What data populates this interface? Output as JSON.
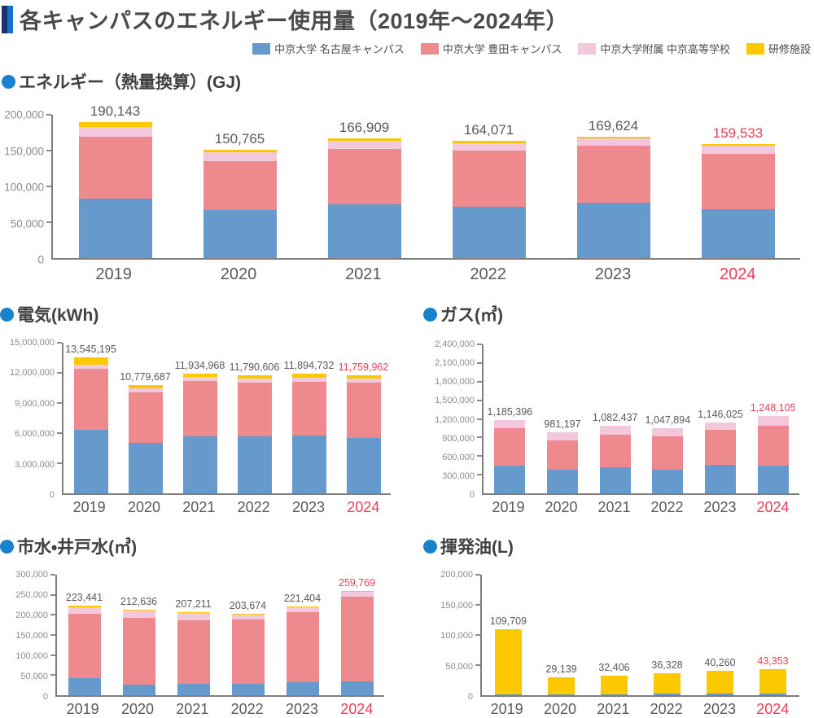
{
  "title": "各キャンパスのエネルギー使用量（2019年～2024年）",
  "colors": {
    "accent_red": "#e8415a",
    "marker_navy": "#1c2e6b",
    "marker_blue": "#1273c6",
    "heading_dot": "#1a82cc"
  },
  "legend": [
    {
      "label": "中京大学 名古屋キャンパス",
      "color": "#6699cc"
    },
    {
      "label": "中京大学 豊田キャンパス",
      "color": "#ee8a8d"
    },
    {
      "label": "中京大学附属 中京高等学校",
      "color": "#f3c7dc"
    },
    {
      "label": "研修施設",
      "color": "#fcc800"
    }
  ],
  "chart_data": [
    {
      "type": "bar",
      "stacked": true,
      "title": "エネルギー（熱量換算）(GJ)",
      "categories": [
        "2019",
        "2020",
        "2021",
        "2022",
        "2023",
        "2024"
      ],
      "axis_max": 200000,
      "ticks": [
        "200,000",
        "150,000",
        "100,000",
        "50,000",
        "0"
      ],
      "totals": [
        "190,143",
        "150,765",
        "166,909",
        "164,071",
        "169,624",
        "159,533"
      ],
      "highlight_last": true,
      "series": [
        {
          "name": "中京大学 名古屋キャンパス",
          "values": [
            82700,
            67500,
            75300,
            72000,
            77100,
            68400
          ]
        },
        {
          "name": "中京大学 豊田キャンパス",
          "values": [
            87000,
            68200,
            76700,
            78300,
            79300,
            77400
          ]
        },
        {
          "name": "中京大学附属 中京高等学校",
          "values": [
            13200,
            12600,
            12050,
            10150,
            10700,
            11100
          ]
        },
        {
          "name": "研修施設",
          "values": [
            7243,
            2465,
            2859,
            3621,
            2524,
            2633
          ]
        }
      ]
    },
    {
      "type": "bar",
      "stacked": true,
      "title": "電気(kWh)",
      "categories": [
        "2019",
        "2020",
        "2021",
        "2022",
        "2023",
        "2024"
      ],
      "axis_max": 15000000,
      "ticks": [
        "15,000,000",
        "12,000,000",
        "9,000,000",
        "6,000,000",
        "3,000,000",
        "0"
      ],
      "totals": [
        "13,545,195",
        "10,779,687",
        "11,934,968",
        "11,790,606",
        "11,894,732",
        "11,759,962"
      ],
      "highlight_last": true,
      "series": [
        {
          "name": "中京大学 名古屋キャンパス",
          "values": [
            6350000,
            5050000,
            5700000,
            5700000,
            5720000,
            5500000
          ]
        },
        {
          "name": "中京大学 豊田キャンパス",
          "values": [
            6050000,
            5000000,
            5480000,
            5350000,
            5400000,
            5520000
          ]
        },
        {
          "name": "中京大学附属 中京高等学校",
          "values": [
            430000,
            400000,
            420000,
            420000,
            430000,
            420000
          ]
        },
        {
          "name": "研修施設",
          "values": [
            715195,
            329687,
            334968,
            320606,
            344732,
            319962
          ]
        }
      ]
    },
    {
      "type": "bar",
      "stacked": true,
      "title": "ガス(㎥)",
      "categories": [
        "2019",
        "2020",
        "2021",
        "2022",
        "2023",
        "2024"
      ],
      "axis_max": 2400000,
      "ticks": [
        "2,400,000",
        "2,100,000",
        "1,800,000",
        "1,500,000",
        "1,200,000",
        "900,000",
        "600,000",
        "300,000",
        "0"
      ],
      "totals": [
        "1,185,396",
        "981,197",
        "1,082,437",
        "1,047,894",
        "1,146,025",
        "1,248,105"
      ],
      "highlight_last": true,
      "series": [
        {
          "name": "中京大学 名古屋キャンパス",
          "values": [
            452000,
            380000,
            420000,
            375000,
            460000,
            445000
          ]
        },
        {
          "name": "中京大学 豊田キャンパス",
          "values": [
            603000,
            472000,
            530000,
            550000,
            565000,
            648000
          ]
        },
        {
          "name": "中京大学附属 中京高等学校",
          "values": [
            130396,
            129197,
            132437,
            122894,
            121025,
            155105
          ]
        },
        {
          "name": "研修施設",
          "values": [
            0,
            0,
            0,
            0,
            0,
            0
          ]
        }
      ]
    },
    {
      "type": "bar",
      "stacked": true,
      "title": "市水・井戸水(㎥)",
      "categories": [
        "2019",
        "2020",
        "2021",
        "2022",
        "2023",
        "2024"
      ],
      "axis_max": 300000,
      "ticks": [
        "300,000",
        "250,000",
        "200,000",
        "150,000",
        "100,000",
        "50,000",
        "0"
      ],
      "totals": [
        "223,441",
        "212,636",
        "207,211",
        "203,674",
        "221,404",
        "259,769"
      ],
      "highlight_last": true,
      "series": [
        {
          "name": "中京大学 名古屋キャンパス",
          "values": [
            43000,
            26000,
            28000,
            29000,
            32000,
            34000
          ]
        },
        {
          "name": "中京大学 豊田キャンパス",
          "values": [
            160000,
            167000,
            159500,
            159000,
            174000,
            211000
          ]
        },
        {
          "name": "中京大学附属 中京高等学校",
          "values": [
            17000,
            17000,
            17000,
            13000,
            13000,
            12500
          ]
        },
        {
          "name": "研修施設",
          "values": [
            3441,
            2636,
            2711,
            2674,
            2404,
            2269
          ]
        }
      ]
    },
    {
      "type": "bar",
      "stacked": true,
      "title": "揮発油(L)",
      "categories": [
        "2019",
        "2020",
        "2021",
        "2022",
        "2023",
        "2024"
      ],
      "axis_max": 200000,
      "ticks": [
        "200,000",
        "150,000",
        "100,000",
        "50,000",
        "0"
      ],
      "totals": [
        "109,709",
        "29,139",
        "32,406",
        "36,328",
        "40,260",
        "43,353"
      ],
      "highlight_last": true,
      "series": [
        {
          "name": "中京大学 名古屋キャンパス",
          "values": [
            1200,
            700,
            800,
            2200,
            2700,
            3000
          ]
        },
        {
          "name": "中京大学 豊田キャンパス",
          "values": [
            0,
            0,
            0,
            0,
            0,
            0
          ]
        },
        {
          "name": "中京大学附属 中京高等学校",
          "values": [
            0,
            0,
            0,
            0,
            0,
            0
          ]
        },
        {
          "name": "研修施設",
          "values": [
            108509,
            28439,
            31606,
            34128,
            37560,
            40353
          ]
        }
      ]
    }
  ]
}
